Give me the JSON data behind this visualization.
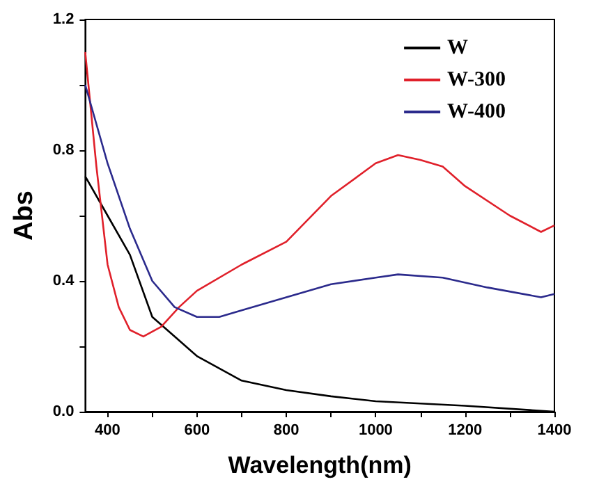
{
  "chart_data": {
    "type": "line",
    "xlabel": "Wavelength(nm)",
    "ylabel": "Abs",
    "series": [
      {
        "name": "W",
        "color": "#000000",
        "x": [
          350,
          400,
          450,
          500,
          600,
          700,
          800,
          900,
          1000,
          1200,
          1400
        ],
        "values": [
          0.72,
          0.6,
          0.48,
          0.29,
          0.17,
          0.095,
          0.066,
          0.047,
          0.032,
          0.018,
          0.0
        ]
      },
      {
        "name": "W-300",
        "color": "#e0202a",
        "x": [
          350,
          375,
          400,
          425,
          450,
          480,
          520,
          560,
          600,
          700,
          800,
          900,
          1000,
          1050,
          1100,
          1150,
          1200,
          1300,
          1370,
          1400
        ],
        "values": [
          1.1,
          0.75,
          0.45,
          0.32,
          0.25,
          0.23,
          0.26,
          0.32,
          0.37,
          0.45,
          0.52,
          0.66,
          0.76,
          0.785,
          0.77,
          0.75,
          0.69,
          0.6,
          0.55,
          0.57
        ]
      },
      {
        "name": "W-400",
        "color": "#2b2a8c",
        "x": [
          350,
          400,
          450,
          500,
          550,
          600,
          650,
          700,
          800,
          900,
          1000,
          1050,
          1150,
          1250,
          1370,
          1400
        ],
        "values": [
          1.0,
          0.76,
          0.56,
          0.4,
          0.32,
          0.29,
          0.29,
          0.31,
          0.35,
          0.39,
          0.41,
          0.42,
          0.41,
          0.38,
          0.35,
          0.36
        ]
      }
    ],
    "xlim": [
      350,
      1400
    ],
    "xticks": [
      400,
      {
        "value": 500,
        "label": null
      },
      600,
      {
        "value": 700,
        "label": null
      },
      800,
      {
        "value": 900,
        "label": null
      },
      1000,
      {
        "value": 1100,
        "label": null
      },
      1200,
      {
        "value": 1300,
        "label": null
      },
      1400
    ],
    "ylim": [
      0,
      1.2
    ],
    "yticks": [
      {
        "value": 0,
        "label": "0.0"
      },
      {
        "value": 0.2,
        "label": null
      },
      {
        "value": 0.4,
        "label": "0.4"
      },
      {
        "value": 0.6,
        "label": null
      },
      {
        "value": 0.8,
        "label": "0.8"
      },
      {
        "value": 1.0,
        "label": null
      },
      {
        "value": 1.2,
        "label": "1.2"
      }
    ],
    "legend": "top right",
    "marker": "none",
    "line_style": "solid",
    "grid": false
  }
}
